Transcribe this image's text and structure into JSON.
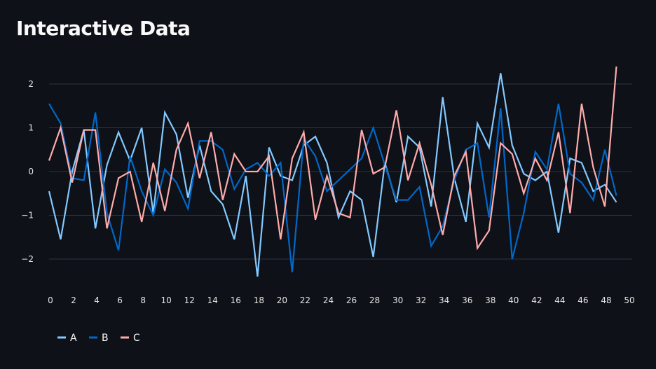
{
  "page": {
    "title": "Interactive Data"
  },
  "chart_data": {
    "type": "line",
    "x": [
      0,
      1,
      2,
      3,
      4,
      5,
      6,
      7,
      8,
      9,
      10,
      11,
      12,
      13,
      14,
      15,
      16,
      17,
      18,
      19,
      20,
      21,
      22,
      23,
      24,
      25,
      26,
      27,
      28,
      29,
      30,
      31,
      32,
      33,
      34,
      35,
      36,
      37,
      38,
      39,
      40,
      41,
      42,
      43,
      44,
      45,
      46,
      47,
      48,
      49
    ],
    "xlim": [
      0,
      50
    ],
    "ylim": [
      -2.4,
      2.4
    ],
    "x_ticks": [
      0,
      2,
      4,
      6,
      8,
      10,
      12,
      14,
      16,
      18,
      20,
      22,
      24,
      26,
      28,
      30,
      32,
      34,
      36,
      38,
      40,
      42,
      44,
      46,
      48,
      50
    ],
    "y_ticks": [
      -2,
      -1,
      0,
      1,
      2
    ],
    "y_tick_labels": [
      "−2",
      "−1",
      "0",
      "1",
      "2"
    ],
    "grid": "horizontal",
    "legend": "bottom-left",
    "series": [
      {
        "name": "A",
        "color": "#83c9ff",
        "values": [
          -0.45,
          -1.55,
          0.0,
          0.95,
          -1.3,
          0.15,
          0.9,
          0.25,
          1.0,
          -0.95,
          1.35,
          0.85,
          -0.6,
          0.6,
          -0.45,
          -0.75,
          -1.55,
          -0.1,
          -2.4,
          0.55,
          -0.1,
          -0.2,
          0.6,
          0.8,
          0.2,
          -1.05,
          -0.45,
          -0.65,
          -1.95,
          0.2,
          -0.7,
          0.8,
          0.55,
          -0.8,
          1.7,
          -0.15,
          -1.15,
          1.1,
          0.55,
          2.25,
          0.6,
          -0.05,
          -0.2,
          0.0,
          -1.4,
          0.3,
          0.2,
          -0.45,
          -0.3,
          -0.7
        ]
      },
      {
        "name": "B",
        "color": "#0068c9",
        "values": [
          1.55,
          1.1,
          -0.15,
          -0.2,
          1.35,
          -0.95,
          -1.8,
          0.35,
          -0.45,
          -1.0,
          0.05,
          -0.25,
          -0.85,
          0.7,
          0.7,
          0.5,
          -0.4,
          0.05,
          0.2,
          -0.1,
          0.2,
          -2.3,
          0.75,
          0.35,
          -0.45,
          -0.2,
          0.05,
          0.3,
          1.0,
          0.15,
          -0.65,
          -0.65,
          -0.35,
          -1.7,
          -1.25,
          -0.2,
          0.5,
          0.65,
          -1.05,
          1.45,
          -2.0,
          -0.95,
          0.45,
          0.05,
          1.55,
          -0.05,
          -0.25,
          -0.65,
          0.5,
          -0.55
        ]
      },
      {
        "name": "C",
        "color": "#ffabab",
        "values": [
          0.25,
          1.0,
          -0.25,
          0.95,
          0.95,
          -1.3,
          -0.15,
          0.0,
          -1.15,
          0.2,
          -0.9,
          0.5,
          1.1,
          -0.15,
          0.9,
          -0.65,
          0.4,
          0.0,
          0.0,
          0.35,
          -1.55,
          0.3,
          0.9,
          -1.1,
          -0.1,
          -0.95,
          -1.05,
          0.95,
          -0.05,
          0.1,
          1.4,
          -0.2,
          0.65,
          -0.3,
          -1.45,
          -0.1,
          0.45,
          -1.75,
          -1.35,
          0.65,
          0.4,
          -0.5,
          0.3,
          -0.2,
          0.9,
          -0.95,
          1.55,
          0.1,
          -0.8,
          2.4
        ]
      }
    ]
  }
}
